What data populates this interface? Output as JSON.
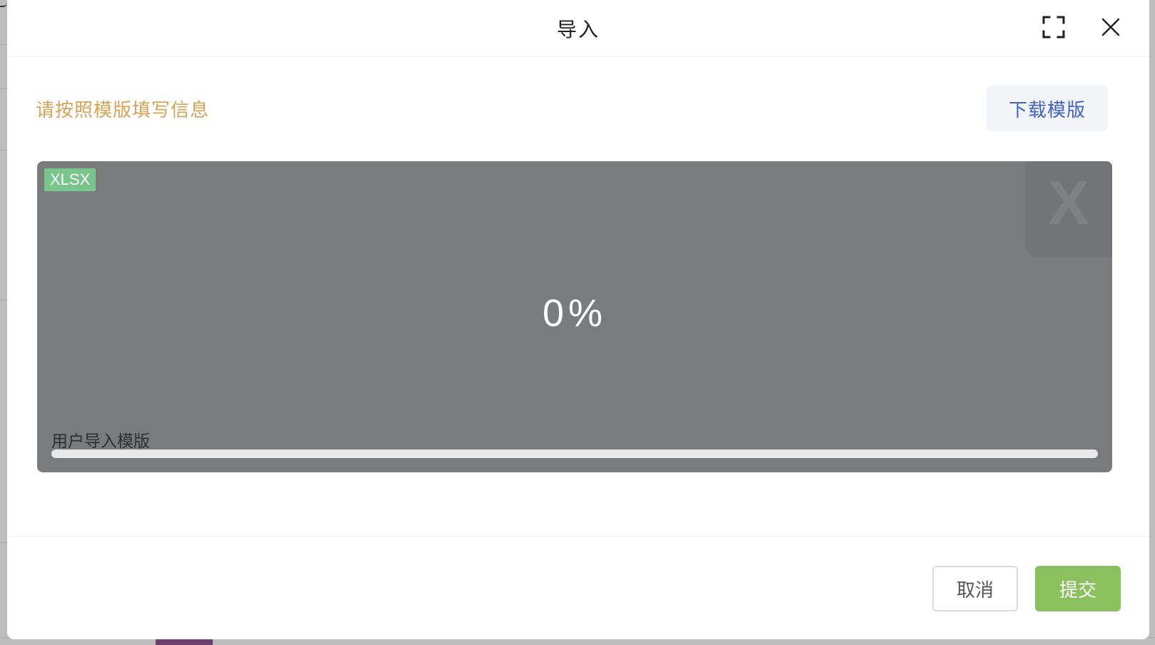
{
  "dialog": {
    "title": "导入",
    "fullscreen_icon": "fullscreen-icon",
    "close_icon": "close-icon"
  },
  "hint": {
    "text": "请按照模版填写信息",
    "color": "#d9a254"
  },
  "download_template": {
    "label": "下载模版",
    "color": "#3f63c9"
  },
  "upload": {
    "file_type_badge": "XLSX",
    "file_type_letter": "X",
    "progress_text": "0%",
    "progress_fraction": 0,
    "file_name": "用户导入模版",
    "badge_color": "#79c68d"
  },
  "footer": {
    "cancel_label": "取消",
    "submit_label": "提交",
    "submit_color": "#8bc05f"
  }
}
